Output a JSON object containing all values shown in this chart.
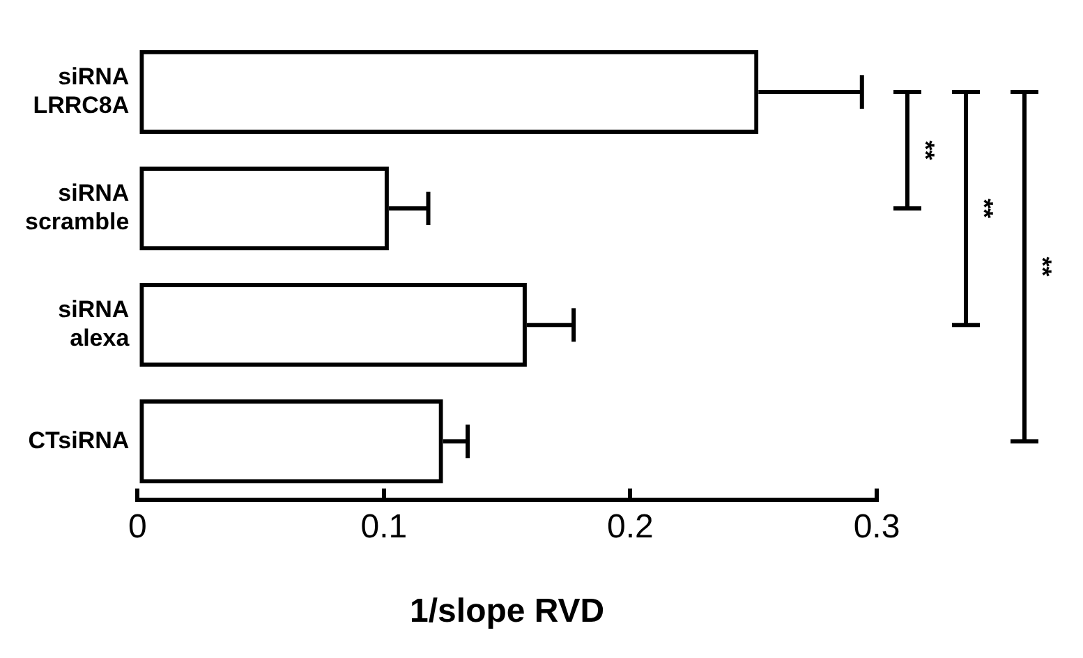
{
  "chart_data": {
    "type": "bar",
    "orientation": "horizontal",
    "xlabel": "1/slope RVD",
    "categories": [
      "siRNA LRRC8A",
      "siRNA scramble",
      "siRNA alexa",
      "CTsiRNA"
    ],
    "values": [
      0.252,
      0.102,
      0.158,
      0.124
    ],
    "errors": [
      0.042,
      0.016,
      0.019,
      0.01
    ],
    "color": "#000000",
    "xlim": [
      0,
      0.3
    ],
    "xticks": [
      0,
      0.1,
      0.2,
      0.3
    ],
    "grid": false,
    "legend": false,
    "annotations": [
      "**",
      "**",
      "**"
    ]
  }
}
